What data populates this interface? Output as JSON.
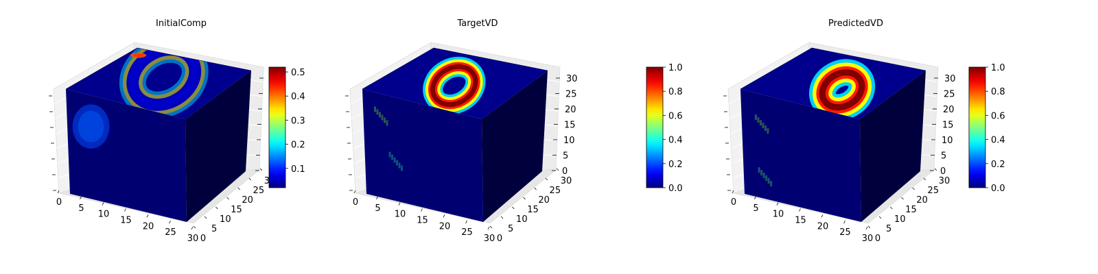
{
  "chart_data": [
    {
      "type": "3d-voxel",
      "title": "InitialComp",
      "x_ticks": [
        "0",
        "5",
        "10",
        "15",
        "20",
        "25",
        "30"
      ],
      "y_ticks": [
        "0",
        "5",
        "10",
        "15",
        "20",
        "25",
        "30"
      ],
      "z_ticks": [],
      "grid": true,
      "colormap": "jet",
      "colorbar": {
        "vmin": 0.02,
        "vmax": 0.52,
        "ticks": [
          "0.1",
          "0.2",
          "0.3",
          "0.4",
          "0.5"
        ],
        "tick_values": [
          0.1,
          0.2,
          0.3,
          0.4,
          0.5
        ]
      },
      "features": [
        {
          "face": "top",
          "shape": "ring",
          "u": 0.62,
          "v": 0.45,
          "radius": 0.38,
          "width": 0.16,
          "value": 0.08
        },
        {
          "face": "top",
          "shape": "spot",
          "u": 0.88,
          "v": 0.08,
          "radius": 0.07,
          "value": 0.42
        },
        {
          "face": "front",
          "shape": "spot",
          "u": 0.2,
          "v": 0.3,
          "radius": 0.15,
          "value": 0.12
        }
      ]
    },
    {
      "type": "3d-voxel",
      "title": "TargetVD",
      "x_ticks": [
        "0",
        "5",
        "10",
        "15",
        "20",
        "25",
        "30"
      ],
      "y_ticks": [
        "0",
        "5",
        "10",
        "15",
        "20",
        "25",
        "30"
      ],
      "z_ticks": [
        "0",
        "5",
        "10",
        "15",
        "20",
        "25",
        "30"
      ],
      "grid": true,
      "colormap": "jet",
      "colorbar": {
        "vmin": 0.0,
        "vmax": 1.0,
        "ticks": [
          "0.0",
          "0.2",
          "0.4",
          "0.6",
          "0.8",
          "1.0"
        ],
        "tick_values": [
          0.0,
          0.2,
          0.4,
          0.6,
          0.8,
          1.0
        ]
      },
      "features": [
        {
          "face": "top",
          "shape": "ring",
          "u": 0.45,
          "v": 0.5,
          "radius": 0.26,
          "width": 0.12,
          "value": 1.0
        },
        {
          "face": "front",
          "shape": "streak",
          "u": 0.15,
          "v": 0.15,
          "value": 0.5
        },
        {
          "face": "front",
          "shape": "streak",
          "u": 0.26,
          "v": 0.55,
          "value": 0.4
        }
      ]
    },
    {
      "type": "3d-voxel",
      "title": "PredictedVD",
      "x_ticks": [
        "0",
        "5",
        "10",
        "15",
        "20",
        "25",
        "30"
      ],
      "y_ticks": [
        "0",
        "5",
        "10",
        "15",
        "20",
        "25",
        "30"
      ],
      "z_ticks": [
        "0",
        "5",
        "10",
        "15",
        "20",
        "25",
        "30"
      ],
      "grid": true,
      "colormap": "jet",
      "colorbar": {
        "vmin": 0.0,
        "vmax": 1.0,
        "ticks": [
          "0.0",
          "0.2",
          "0.4",
          "0.6",
          "0.8",
          "1.0"
        ],
        "tick_values": [
          0.0,
          0.2,
          0.4,
          0.6,
          0.8,
          1.0
        ]
      },
      "features": [
        {
          "face": "top",
          "shape": "ring",
          "u": 0.42,
          "v": 0.6,
          "radius": 0.24,
          "width": 0.16,
          "value": 1.0
        },
        {
          "face": "front",
          "shape": "streak",
          "u": 0.17,
          "v": 0.22,
          "value": 0.5
        },
        {
          "face": "front",
          "shape": "streak",
          "u": 0.18,
          "v": 0.72,
          "value": 0.45
        }
      ]
    }
  ]
}
